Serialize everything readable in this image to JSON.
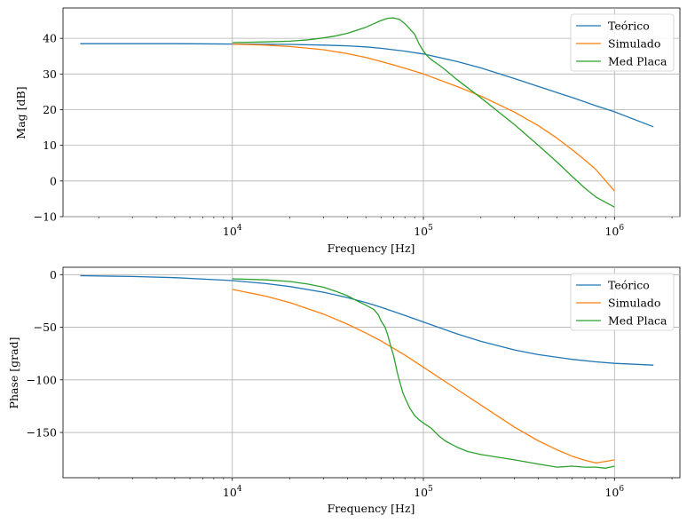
{
  "chart_data": [
    {
      "type": "line",
      "xscale": "log",
      "xlim": [
        1300,
        2200000
      ],
      "ylim": [
        -10,
        48.5
      ],
      "xlabel": "Frequency [Hz]",
      "ylabel": "Mag [dB]",
      "grid": true,
      "legend_position": "upper right",
      "x_major_ticks": [
        {
          "value": 10000,
          "base": "10",
          "exp": "4"
        },
        {
          "value": 100000,
          "base": "10",
          "exp": "5"
        },
        {
          "value": 1000000,
          "base": "10",
          "exp": "6"
        }
      ],
      "y_ticks": [
        {
          "value": 40,
          "label": "40"
        },
        {
          "value": 30,
          "label": "30"
        },
        {
          "value": 20,
          "label": "20"
        },
        {
          "value": 10,
          "label": "10"
        },
        {
          "value": 0,
          "label": "0"
        },
        {
          "value": -10,
          "label": "−10"
        }
      ],
      "series": [
        {
          "name": "Teórico",
          "color": "#1f77b4",
          "x": [
            1600,
            3000,
            5000,
            10000,
            20000,
            30000,
            40000,
            50000,
            60000,
            80000,
            100000,
            150000,
            200000,
            300000,
            400000,
            600000,
            800000,
            1000000,
            1600000
          ],
          "y": [
            38.5,
            38.5,
            38.5,
            38.4,
            38.3,
            38.1,
            37.9,
            37.6,
            37.2,
            36.4,
            35.6,
            33.5,
            31.7,
            28.7,
            26.5,
            23.4,
            21.1,
            19.4,
            15.2
          ]
        },
        {
          "name": "Simulado",
          "color": "#ff7f0e",
          "x": [
            10000,
            15000,
            20000,
            30000,
            40000,
            50000,
            60000,
            70000,
            80000,
            100000,
            150000,
            200000,
            300000,
            400000,
            500000,
            600000,
            700000,
            800000,
            1000000
          ],
          "y": [
            38.4,
            38.1,
            37.7,
            36.8,
            35.7,
            34.6,
            33.5,
            32.5,
            31.6,
            30.0,
            26.5,
            23.8,
            19.3,
            15.5,
            12.0,
            8.8,
            5.9,
            3.2,
            -2.8
          ]
        },
        {
          "name": "Med Placa",
          "color": "#2ca02c",
          "x": [
            10000,
            15000,
            20000,
            25000,
            30000,
            35000,
            40000,
            45000,
            50000,
            55000,
            60000,
            65000,
            70000,
            75000,
            80000,
            85000,
            90000,
            95000,
            100000,
            105000,
            110000,
            120000,
            130000,
            150000,
            200000,
            300000,
            400000,
            500000,
            600000,
            700000,
            800000,
            900000,
            1000000
          ],
          "y": [
            38.8,
            39.0,
            39.2,
            39.6,
            40.1,
            40.7,
            41.4,
            42.3,
            43.1,
            44.1,
            45.0,
            45.6,
            45.7,
            45.3,
            44.1,
            42.6,
            41.1,
            38.4,
            36.4,
            35.0,
            34.0,
            32.6,
            31.2,
            28.4,
            23.3,
            15.8,
            10.0,
            5.3,
            1.3,
            -2.0,
            -4.5,
            -6.0,
            -7.3
          ]
        }
      ]
    },
    {
      "type": "line",
      "xscale": "log",
      "xlim": [
        1300,
        2200000
      ],
      "ylim": [
        -193,
        7
      ],
      "xlabel": "Frequency [Hz]",
      "ylabel": "Phase [grad]",
      "grid": true,
      "legend_position": "upper right",
      "x_major_ticks": [
        {
          "value": 10000,
          "base": "10",
          "exp": "4"
        },
        {
          "value": 100000,
          "base": "10",
          "exp": "5"
        },
        {
          "value": 1000000,
          "base": "10",
          "exp": "6"
        }
      ],
      "y_ticks": [
        {
          "value": 0,
          "label": "0"
        },
        {
          "value": -50,
          "label": "−50"
        },
        {
          "value": -100,
          "label": "−100"
        },
        {
          "value": -150,
          "label": "−150"
        }
      ],
      "series": [
        {
          "name": "Teórico",
          "color": "#1f77b4",
          "x": [
            1600,
            3000,
            5000,
            10000,
            15000,
            20000,
            30000,
            40000,
            50000,
            60000,
            80000,
            100000,
            150000,
            200000,
            300000,
            400000,
            600000,
            800000,
            1000000,
            1600000
          ],
          "y": [
            -1.0,
            -1.8,
            -2.9,
            -5.7,
            -8.5,
            -11.3,
            -16.7,
            -21.8,
            -26.6,
            -31.0,
            -38.7,
            -45.0,
            -56.3,
            -63.4,
            -71.6,
            -76.0,
            -80.5,
            -82.9,
            -84.3,
            -86.0
          ]
        },
        {
          "name": "Simulado",
          "color": "#ff7f0e",
          "x": [
            10000,
            15000,
            20000,
            30000,
            40000,
            50000,
            60000,
            80000,
            100000,
            150000,
            200000,
            300000,
            400000,
            500000,
            600000,
            700000,
            800000,
            900000,
            1000000
          ],
          "y": [
            -14.0,
            -20.5,
            -26.5,
            -37.5,
            -47.0,
            -55.5,
            -63.0,
            -76.5,
            -88.0,
            -109.0,
            -124.0,
            -145.0,
            -158.0,
            -166.5,
            -172.5,
            -176.5,
            -179.0,
            -177.5,
            -176.0
          ]
        },
        {
          "name": "Med Placa",
          "color": "#2ca02c",
          "x": [
            10000,
            15000,
            20000,
            25000,
            30000,
            35000,
            40000,
            45000,
            50000,
            55000,
            58000,
            60000,
            63000,
            65000,
            67000,
            70000,
            73000,
            75000,
            78000,
            80000,
            85000,
            90000,
            95000,
            100000,
            110000,
            120000,
            130000,
            150000,
            170000,
            200000,
            300000,
            400000,
            500000,
            600000,
            700000,
            800000,
            900000,
            1000000
          ],
          "y": [
            -4.0,
            -5.0,
            -6.5,
            -9.0,
            -12.0,
            -16.0,
            -20.0,
            -25.0,
            -29.0,
            -33.0,
            -38.0,
            -44.0,
            -50.0,
            -57.0,
            -66.0,
            -78.0,
            -93.0,
            -101.0,
            -112.0,
            -117.0,
            -127.0,
            -134.0,
            -138.0,
            -141.0,
            -146.0,
            -153.0,
            -158.0,
            -164.0,
            -168.0,
            -171.0,
            -176.0,
            -180.0,
            -183.0,
            -182.0,
            -183.0,
            -183.0,
            -184.0,
            -182.0
          ]
        }
      ]
    }
  ]
}
